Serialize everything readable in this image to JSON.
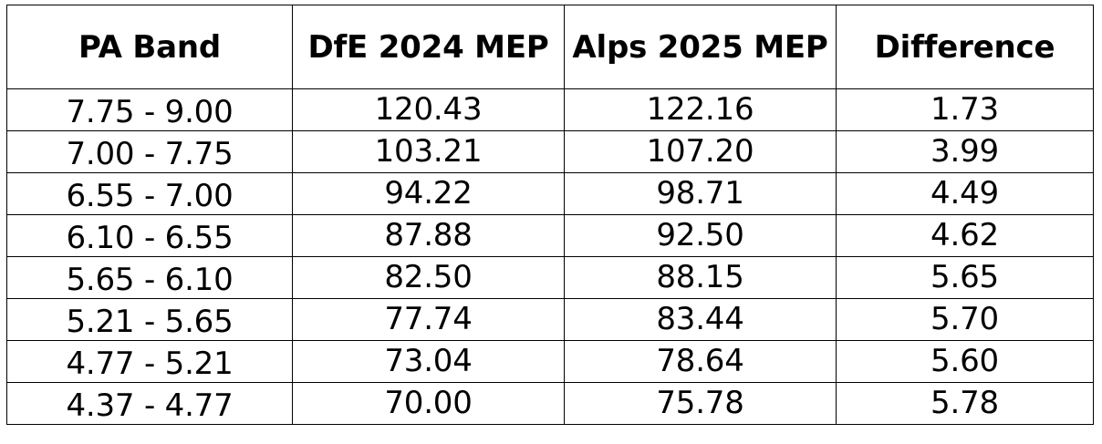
{
  "table": {
    "headers": [
      "PA Band",
      "DfE 2024 MEP",
      "Alps 2025 MEP",
      "Difference"
    ],
    "rows": [
      [
        "7.75 - 9.00",
        "120.43",
        "122.16",
        "1.73"
      ],
      [
        "7.00 - 7.75",
        "103.21",
        "107.20",
        "3.99"
      ],
      [
        "6.55 - 7.00",
        "94.22",
        "98.71",
        "4.49"
      ],
      [
        "6.10 - 6.55",
        "87.88",
        "92.50",
        "4.62"
      ],
      [
        "5.65 - 6.10",
        "82.50",
        "88.15",
        "5.65"
      ],
      [
        "5.21 - 5.65",
        "77.74",
        "83.44",
        "5.70"
      ],
      [
        "4.77 - 5.21",
        "73.04",
        "78.64",
        "5.60"
      ],
      [
        "4.37 - 4.77",
        "70.00",
        "75.78",
        "5.78"
      ]
    ]
  }
}
